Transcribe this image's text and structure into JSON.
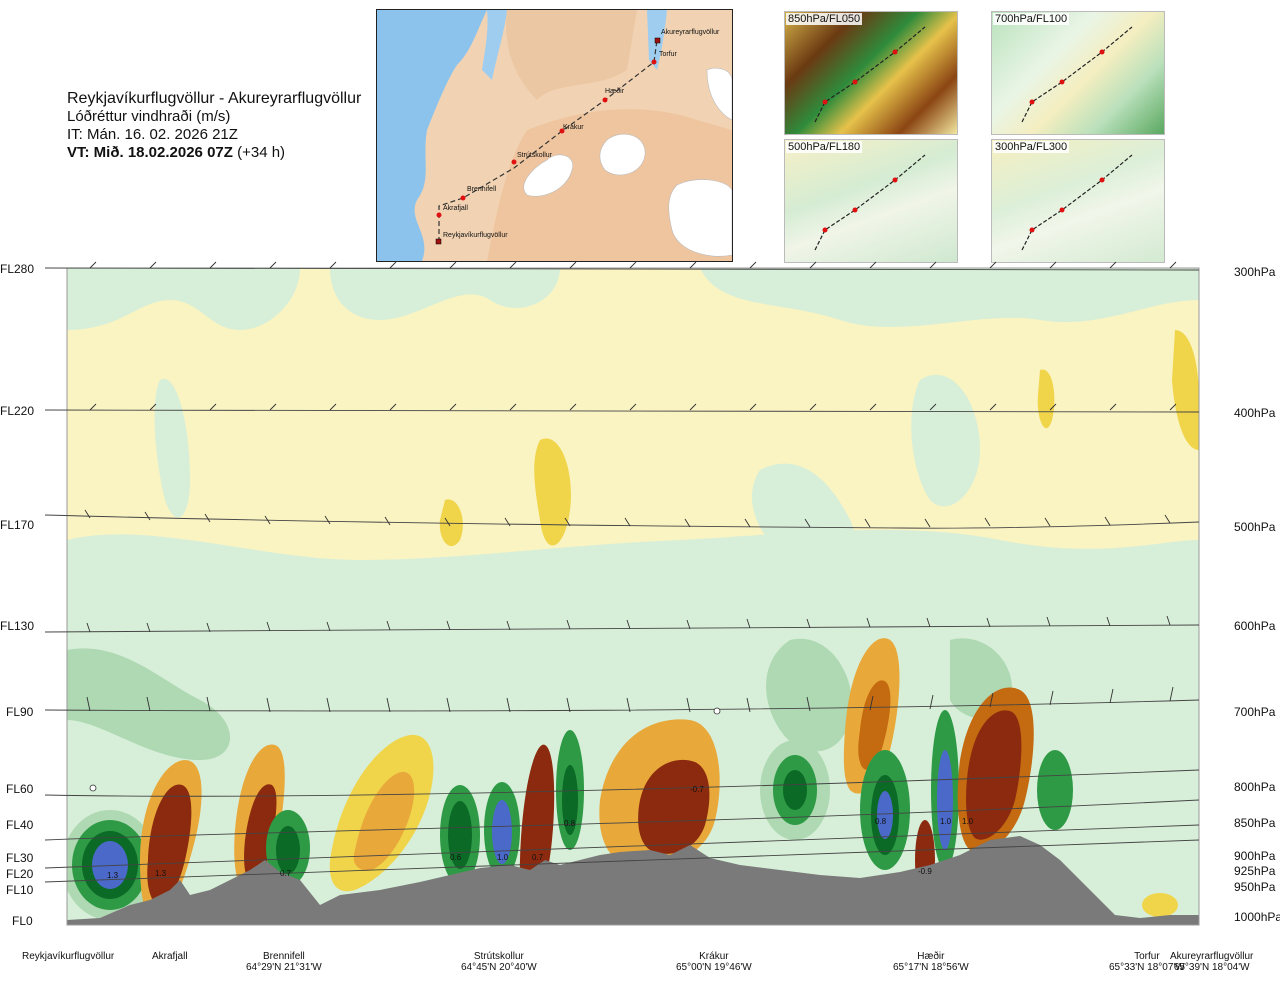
{
  "header": {
    "route": "Reykjavíkurflugvöllur - Akureyrarflugvöllur",
    "variable": "Lóðréttur vindhraði (m/s)",
    "issue_time": "IT: Mán. 16. 02. 2026 21Z",
    "valid_prefix": "VT: Mið. 18.02.2026 07Z",
    "valid_offset": "(+34 h)"
  },
  "map": {
    "waypoints": [
      {
        "name": "Akureyrarflugvöllur",
        "kind": "airport"
      },
      {
        "name": "Torfur",
        "kind": "point"
      },
      {
        "name": "Hæðir",
        "kind": "point"
      },
      {
        "name": "Krákur",
        "kind": "point"
      },
      {
        "name": "Strútskollur",
        "kind": "point"
      },
      {
        "name": "Brennifell",
        "kind": "point"
      },
      {
        "name": "Akrafjall",
        "kind": "point"
      },
      {
        "name": "Reykjavíkurflugvöllur",
        "kind": "airport"
      }
    ]
  },
  "thumbnails": [
    {
      "label": "850hPa/FL050"
    },
    {
      "label": "700hPa/FL100"
    },
    {
      "label": "500hPa/FL180"
    },
    {
      "label": "300hPa/FL300"
    }
  ],
  "colors": {
    "strong_up": "#8b2a0e",
    "up": "#c46a10",
    "weak_up": "#e8a83a",
    "slight_up": "#f7e3a0",
    "neutral_pos": "#faf3c2",
    "neutral_neg": "#d7efd9",
    "slight_down": "#aed9b2",
    "down": "#2e9a45",
    "strong_down": "#0a6a26",
    "very_strong_down": "#4a69c8",
    "terrain": "#7a7a7a"
  },
  "chart_data": {
    "type": "heatmap",
    "title": "Lóðréttur vindhraði (m/s)",
    "left_axis_labels": [
      "FL280",
      "FL220",
      "FL170",
      "FL130",
      "FL90",
      "FL60",
      "FL40",
      "FL30",
      "FL20",
      "FL10",
      "FL0"
    ],
    "right_axis_labels": [
      "300hPa",
      "400hPa",
      "500hPa",
      "600hPa",
      "700hPa",
      "800hPa",
      "850hPa",
      "900hPa",
      "925hPa",
      "950hPa",
      "1000hPa"
    ],
    "bottom_labels": [
      {
        "name": "Reykjavíkurflugvöllur",
        "coord": ""
      },
      {
        "name": "Akrafjall",
        "coord": ""
      },
      {
        "name": "Brennifell",
        "coord": "64°29'N 21°31'W"
      },
      {
        "name": "Strútskollur",
        "coord": "64°45'N 20°40'W"
      },
      {
        "name": "Krákur",
        "coord": "65°00'N 19°46'W"
      },
      {
        "name": "Hæðir",
        "coord": "65°17'N 18°56'W"
      },
      {
        "name": "Torfur",
        "coord": "65°33'N 18°07'W"
      },
      {
        "name": "Akureyrarflugvöllur",
        "coord": "65°39'N 18°04'W"
      }
    ],
    "annotations": [
      "1.3",
      "1.3",
      "0.7",
      "0.6",
      "1.0",
      "0.7",
      "0.8",
      "-0.7",
      "0.8",
      "1.0",
      "1.0",
      "-0.9"
    ]
  }
}
